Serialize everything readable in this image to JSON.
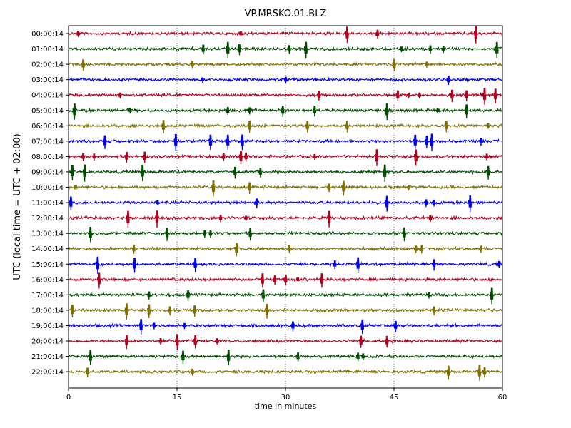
{
  "chart_data": {
    "type": "line",
    "title": "VP.MRSKO.01.BLZ",
    "xlabel": "time in minutes",
    "ylabel": "UTC (local time = UTC + 02:00)",
    "xlim": [
      0,
      60
    ],
    "xticks": [
      0,
      15,
      30,
      45,
      60
    ],
    "grid": "vertical dotted at 15, 30, 45",
    "legend": "none",
    "row_colors": [
      "#B2001E",
      "#004D00",
      "#807000",
      "#0000F0"
    ],
    "series": [
      {
        "label": "00:00:14",
        "color": "#B2001E",
        "events": [
          1.3,
          23.8,
          38.5,
          42.7,
          56.3
        ]
      },
      {
        "label": "01:00:14",
        "color": "#004D00",
        "events": [
          18.6,
          22.0,
          23.6,
          30.5,
          32.8,
          46.0,
          50.0,
          51.8,
          59.2
        ]
      },
      {
        "label": "02:00:14",
        "color": "#807000",
        "events": [
          2.0,
          17.1,
          45.0,
          49.5
        ]
      },
      {
        "label": "03:00:14",
        "color": "#0000F0",
        "events": [
          18.5,
          30.0,
          52.5
        ]
      },
      {
        "label": "04:00:14",
        "color": "#B2001E",
        "events": [
          7.1,
          34.6,
          45.5,
          47.0,
          48.5,
          53.0,
          55.0,
          57.5,
          59.0
        ]
      },
      {
        "label": "05:00:14",
        "color": "#004D00",
        "events": [
          0.8,
          8.5,
          22.0,
          25.0,
          29.6,
          34.0,
          44.0,
          51.0,
          55.0
        ]
      },
      {
        "label": "06:00:14",
        "color": "#807000",
        "events": [
          13.1,
          25.0,
          33.0,
          38.5,
          52.2,
          58.0
        ]
      },
      {
        "label": "07:00:14",
        "color": "#0000F0",
        "events": [
          5.0,
          14.8,
          19.6,
          22.0,
          24.0,
          47.9,
          49.5,
          50.2,
          57.0
        ]
      },
      {
        "label": "08:00:14",
        "color": "#B2001E",
        "events": [
          2.0,
          3.5,
          8.0,
          10.5,
          21.4,
          23.8,
          24.5,
          34.0,
          42.6,
          48.0,
          57.8
        ]
      },
      {
        "label": "09:00:14",
        "color": "#004D00",
        "events": [
          0.5,
          2.2,
          10.2,
          23.0,
          26.5,
          43.7,
          58.0
        ]
      },
      {
        "label": "10:00:14",
        "color": "#807000",
        "events": [
          1.0,
          20.0,
          25.0,
          36.0,
          38.0,
          47.0
        ]
      },
      {
        "label": "11:00:14",
        "color": "#0000F0",
        "events": [
          0.3,
          12.3,
          26.0,
          44.0,
          49.4,
          50.5,
          55.5
        ]
      },
      {
        "label": "12:00:14",
        "color": "#B2001E",
        "events": [
          8.2,
          12.2,
          21.0,
          24.5,
          36.0,
          50.0
        ]
      },
      {
        "label": "13:00:14",
        "color": "#004D00",
        "events": [
          3.0,
          13.6,
          18.8,
          19.6,
          25.1,
          46.4
        ]
      },
      {
        "label": "14:00:14",
        "color": "#807000",
        "events": [
          9.0,
          23.2,
          30.5,
          48.0,
          48.8,
          57.0
        ]
      },
      {
        "label": "15:00:14",
        "color": "#0000F0",
        "events": [
          4.0,
          9.1,
          17.5,
          36.8,
          40.0,
          50.5,
          59.5
        ]
      },
      {
        "label": "16:00:14",
        "color": "#B2001E",
        "events": [
          4.2,
          26.8,
          28.5,
          30.0,
          31.7,
          35.0
        ]
      },
      {
        "label": "17:00:14",
        "color": "#004D00",
        "events": [
          11.1,
          16.5,
          26.9,
          49.8,
          58.5
        ]
      },
      {
        "label": "18:00:14",
        "color": "#807000",
        "events": [
          0.5,
          8.0,
          11.1,
          14.0,
          17.4,
          27.4,
          50.5
        ]
      },
      {
        "label": "19:00:14",
        "color": "#0000F0",
        "events": [
          10.0,
          11.8,
          16.0,
          31.0,
          40.6,
          45.2
        ]
      },
      {
        "label": "20:00:14",
        "color": "#B2001E",
        "events": [
          8.0,
          12.7,
          15.0,
          17.5,
          20.5,
          40.4,
          44.0
        ]
      },
      {
        "label": "21:00:14",
        "color": "#004D00",
        "events": [
          3.0,
          15.8,
          22.1,
          31.7,
          40.0,
          40.7
        ]
      },
      {
        "label": "22:00:14",
        "color": "#807000",
        "events": [
          2.6,
          17.1,
          52.5,
          56.8,
          57.5
        ]
      }
    ]
  }
}
